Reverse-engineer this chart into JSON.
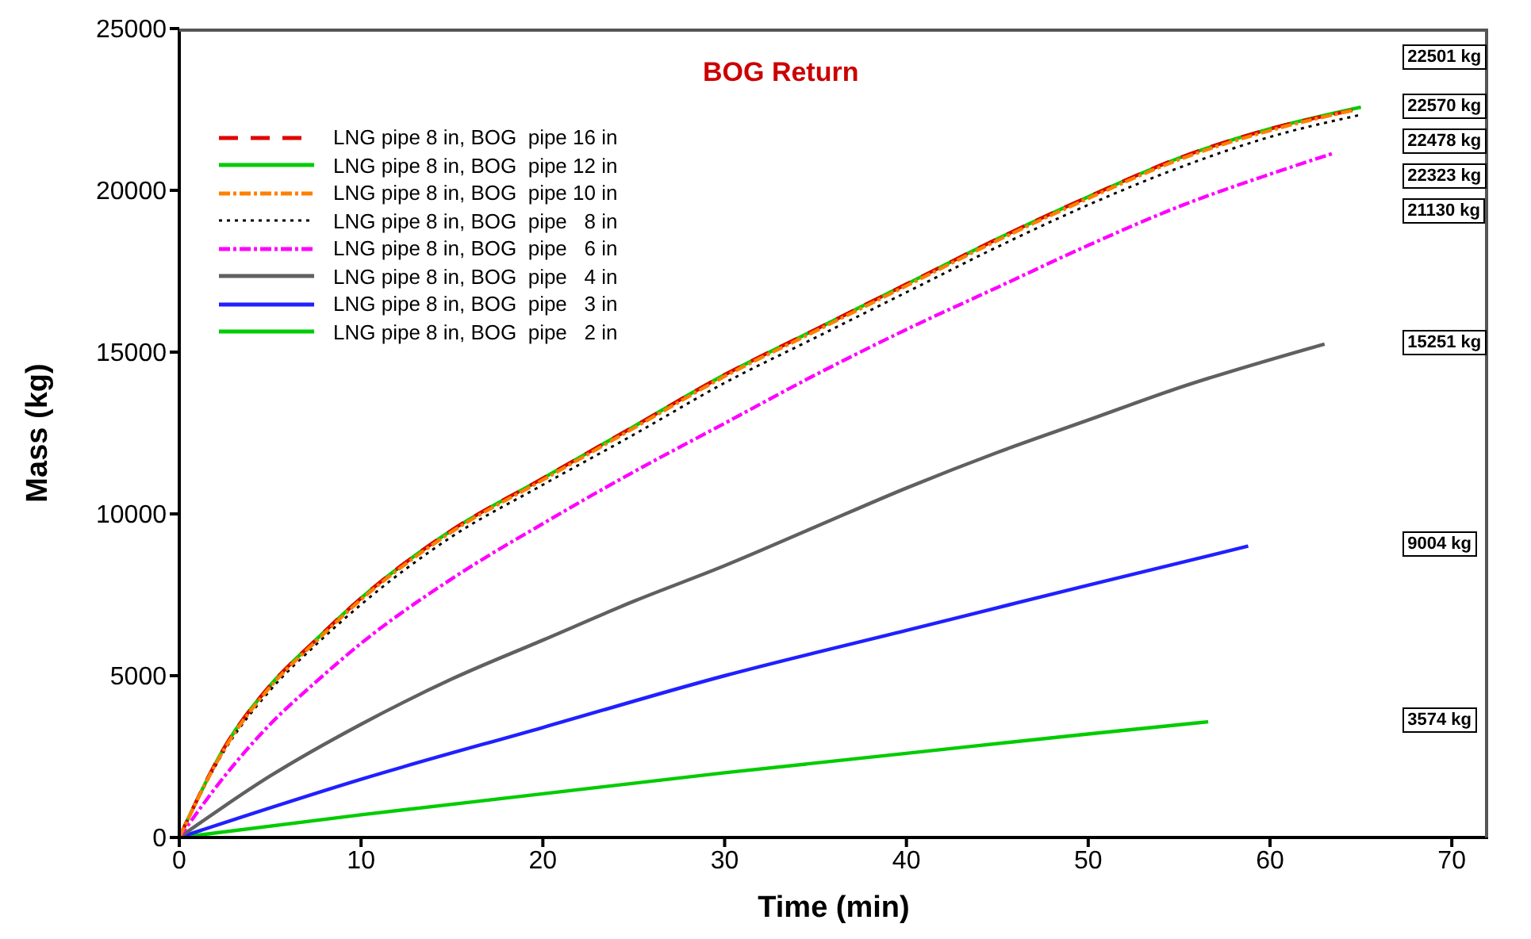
{
  "chart_data": {
    "type": "line",
    "title": "BOG Return",
    "xlabel": "Time (min)",
    "ylabel": "Mass (kg)",
    "xlim": [
      0,
      72
    ],
    "xticks": [
      0,
      10,
      20,
      30,
      40,
      50,
      60,
      70
    ],
    "ylim": [
      0,
      25000
    ],
    "yticks": [
      0,
      5000,
      10000,
      15000,
      20000,
      25000
    ],
    "grid": false,
    "legend": "top left",
    "marker": "none",
    "series": [
      {
        "name": "LNG pipe 8 in, BOG  pipe 16 in",
        "color": "#e00000",
        "line_style": "dashed",
        "x": [
          0,
          2.5,
          5,
          7.5,
          10,
          15,
          20,
          25,
          30,
          35,
          40,
          45,
          50,
          55,
          60,
          64.8
        ],
        "values": [
          0,
          2800,
          4700,
          6100,
          7400,
          9500,
          11100,
          12700,
          14300,
          15700,
          17100,
          18500,
          19800,
          21000,
          21900,
          22501
        ]
      },
      {
        "name": "LNG pipe 8 in, BOG  pipe 12 in",
        "color": "#00cc00",
        "line_style": "solid",
        "x": [
          0,
          2.5,
          5,
          7.5,
          10,
          15,
          20,
          25,
          30,
          35,
          40,
          45,
          50,
          55,
          60,
          65
        ],
        "values": [
          0,
          2800,
          4700,
          6100,
          7400,
          9500,
          11100,
          12700,
          14300,
          15700,
          17100,
          18500,
          19800,
          21000,
          21900,
          22570
        ]
      },
      {
        "name": "LNG pipe 8 in, BOG  pipe 10 in",
        "color": "#ff8000",
        "line_style": "dashdot",
        "x": [
          0,
          2.5,
          5,
          7.5,
          10,
          15,
          20,
          25,
          30,
          35,
          40,
          45,
          50,
          55,
          60,
          64.6
        ],
        "values": [
          0,
          2750,
          4650,
          6050,
          7350,
          9450,
          11050,
          12650,
          14250,
          15650,
          17050,
          18450,
          19750,
          20950,
          21850,
          22478
        ]
      },
      {
        "name": "LNG pipe 8 in, BOG  pipe   8 in",
        "color": "#000000",
        "line_style": "dotted",
        "x": [
          0,
          2.5,
          5,
          7.5,
          10,
          15,
          20,
          25,
          30,
          35,
          40,
          45,
          50,
          55,
          60,
          64.9
        ],
        "values": [
          0,
          2700,
          4550,
          5950,
          7200,
          9300,
          10900,
          12450,
          14050,
          15450,
          16850,
          18250,
          19550,
          20700,
          21650,
          22323
        ]
      },
      {
        "name": "LNG pipe 8 in, BOG  pipe   6 in",
        "color": "#ff00ff",
        "line_style": "dashdot",
        "x": [
          0,
          2.5,
          5,
          7.5,
          10,
          15,
          20,
          25,
          30,
          35,
          40,
          45,
          50,
          55,
          60,
          63.4
        ],
        "values": [
          0,
          1900,
          3500,
          4800,
          6000,
          8000,
          9700,
          11300,
          12800,
          14300,
          15700,
          17000,
          18300,
          19500,
          20500,
          21130
        ]
      },
      {
        "name": "LNG pipe 8 in, BOG  pipe   4 in",
        "color": "#606060",
        "line_style": "solid",
        "x": [
          0,
          5,
          10,
          15,
          20,
          25,
          30,
          35,
          40,
          45,
          50,
          55,
          63
        ],
        "values": [
          0,
          1900,
          3500,
          4900,
          6100,
          7300,
          8400,
          9600,
          10800,
          11900,
          12900,
          13900,
          15251
        ]
      },
      {
        "name": "LNG pipe 8 in, BOG  pipe   3 in",
        "color": "#2020ff",
        "line_style": "solid",
        "x": [
          0,
          10,
          20,
          30,
          40,
          50,
          58.8
        ],
        "values": [
          0,
          1800,
          3400,
          5000,
          6400,
          7800,
          9004
        ]
      },
      {
        "name": "LNG pipe 8 in, BOG  pipe   2 in",
        "color": "#00cc00",
        "line_style": "solid",
        "x": [
          0,
          10,
          20,
          30,
          40,
          50,
          56.6
        ],
        "values": [
          0,
          700,
          1350,
          2000,
          2600,
          3200,
          3574
        ]
      }
    ],
    "annotations": [
      "22501 kg",
      "22570 kg",
      "22478 kg",
      "22323 kg",
      "21130 kg",
      "15251 kg",
      "9004 kg",
      "3574 kg"
    ]
  }
}
